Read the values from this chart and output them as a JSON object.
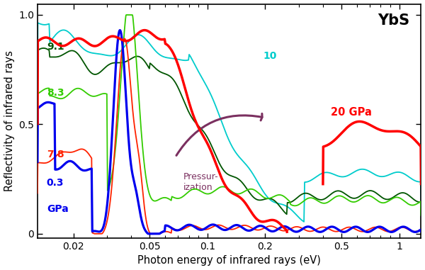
{
  "title": "YbS",
  "xlabel": "Photon energy of infrared rays (eV)",
  "ylabel": "Reflectivity of infrared rays",
  "xlim": [
    0.013,
    1.3
  ],
  "ylim": [
    -0.02,
    1.05
  ],
  "background_color": "#ffffff",
  "arrow_color": "#7b3060",
  "arrow_text": "Pressur-\nization"
}
